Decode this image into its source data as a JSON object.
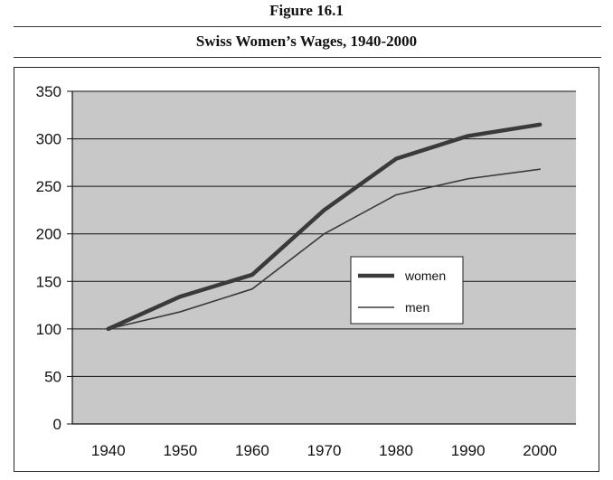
{
  "figure_label": "Figure 16.1",
  "chart_data": {
    "type": "line",
    "title": "Swiss Women’s Wages, 1940-2000",
    "xlabel": "",
    "ylabel": "",
    "x": [
      1940,
      1950,
      1960,
      1970,
      1980,
      1990,
      2000
    ],
    "ylim": [
      0,
      350
    ],
    "yticks": [
      0,
      50,
      100,
      150,
      200,
      250,
      300,
      350
    ],
    "grid": "horizontal",
    "legend_position": "center-right",
    "plot_background": "#c8c8c8",
    "series": [
      {
        "name": "women",
        "values": [
          100,
          134,
          157,
          225,
          279,
          303,
          315
        ],
        "color": "#3a3a3a",
        "style": "thick"
      },
      {
        "name": "men",
        "values": [
          100,
          118,
          142,
          200,
          241,
          258,
          268
        ],
        "color": "#3a3a3a",
        "style": "thin"
      }
    ]
  }
}
